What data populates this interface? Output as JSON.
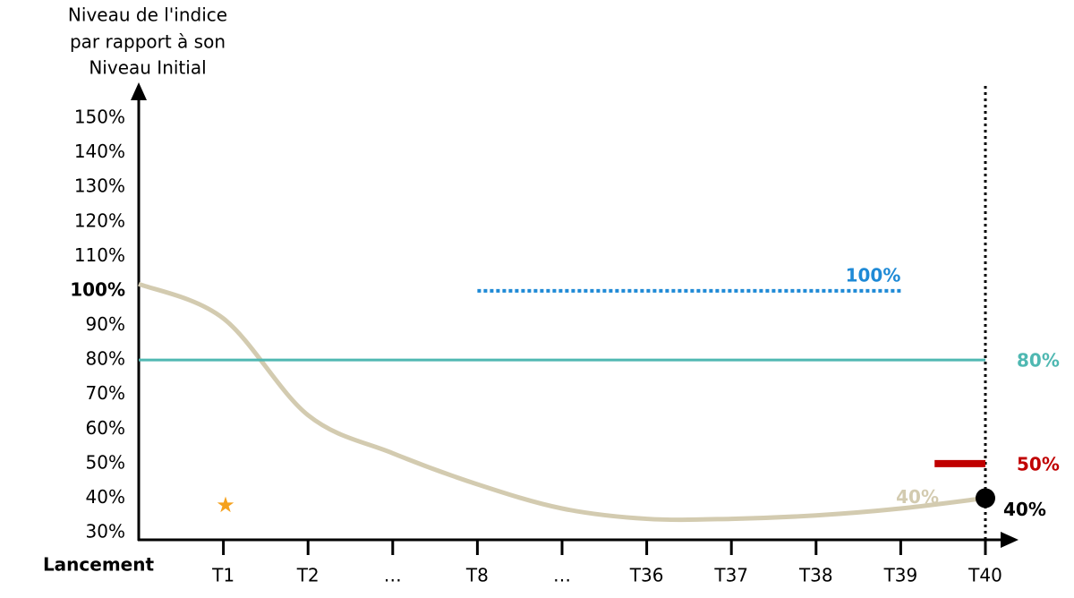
{
  "chart_data": {
    "type": "line",
    "y_axis_title": [
      "Niveau de l'indice",
      "par rapport à son",
      "Niveau Initial"
    ],
    "categories": [
      "Lancement",
      "T1",
      "T2",
      "…",
      "T8",
      "…",
      "T36",
      "T37",
      "T38",
      "T39",
      "T40"
    ],
    "ylim": [
      30,
      150
    ],
    "yticks": [
      {
        "value": 30,
        "label": "30%"
      },
      {
        "value": 40,
        "label": "40%"
      },
      {
        "value": 50,
        "label": "50%"
      },
      {
        "value": 60,
        "label": "60%"
      },
      {
        "value": 70,
        "label": "70%"
      },
      {
        "value": 80,
        "label": "80%"
      },
      {
        "value": 90,
        "label": "90%"
      },
      {
        "value": 100,
        "label": "100%"
      },
      {
        "value": 110,
        "label": "110%"
      },
      {
        "value": 120,
        "label": "120%"
      },
      {
        "value": 130,
        "label": "130%"
      },
      {
        "value": 140,
        "label": "140%"
      },
      {
        "value": 150,
        "label": "150%"
      }
    ],
    "series": [
      {
        "style": "curve",
        "color": "#d3cbb0",
        "values": [
          102,
          92,
          64,
          53,
          44,
          37,
          34,
          34,
          35,
          37,
          40
        ],
        "value_labels": [
          null,
          null,
          null,
          null,
          null,
          null,
          null,
          null,
          null,
          null,
          "40%"
        ]
      },
      {
        "style": "solid",
        "color": "#4fb8b2",
        "values": [
          80,
          80,
          80,
          80,
          80,
          80,
          80,
          80,
          80,
          80,
          80
        ],
        "value_labels": [
          null,
          null,
          null,
          null,
          null,
          null,
          null,
          null,
          null,
          null,
          "80%"
        ]
      },
      {
        "style": "dotted",
        "color": "#1f8ad6",
        "values": [
          null,
          null,
          null,
          null,
          100,
          100,
          100,
          100,
          100,
          100,
          null
        ],
        "value_labels": [
          null,
          null,
          null,
          null,
          null,
          null,
          null,
          null,
          null,
          "100%",
          null
        ]
      },
      {
        "style": "level",
        "color": "#c00000",
        "values": [
          null,
          null,
          null,
          null,
          null,
          null,
          null,
          null,
          null,
          null,
          50
        ],
        "value_labels": [
          null,
          null,
          null,
          null,
          null,
          null,
          null,
          null,
          null,
          null,
          "50%"
        ]
      },
      {
        "style": "point",
        "color": "#000000",
        "values": [
          null,
          null,
          null,
          null,
          null,
          null,
          null,
          null,
          null,
          null,
          40
        ],
        "value_labels": [
          null,
          null,
          null,
          null,
          null,
          null,
          null,
          null,
          null,
          null,
          "40%"
        ]
      }
    ]
  }
}
